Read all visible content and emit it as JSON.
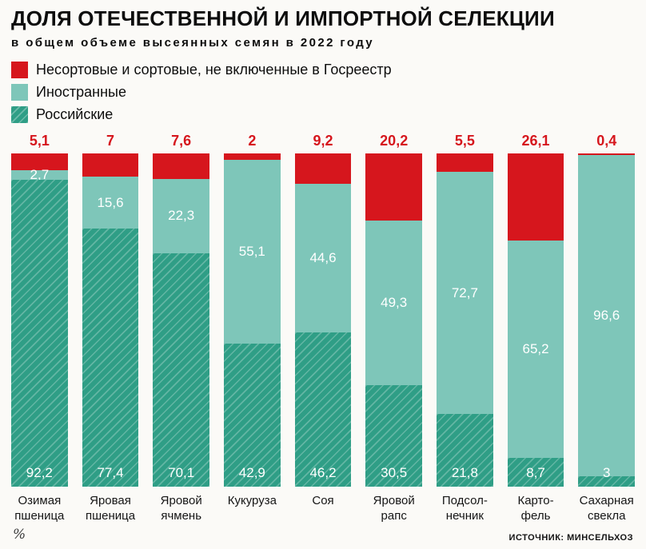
{
  "title": "ДОЛЯ ОТЕЧЕСТВЕННОЙ И ИМПОРТНОЙ СЕЛЕКЦИИ",
  "subtitle": "в общем объеме высеянных семян в 2022 году",
  "colors": {
    "unsorted": "#d6161d",
    "foreign": "#7ec6b9",
    "russian": "#2f9e86",
    "background": "#fbfaf7"
  },
  "legend": [
    {
      "key": "unsorted",
      "label": "Несортовые и сортовые, не включенные в Госреестр"
    },
    {
      "key": "foreign",
      "label": "Иностранные"
    },
    {
      "key": "russian",
      "label": "Российские"
    }
  ],
  "chart_data": {
    "type": "bar",
    "stacked": true,
    "unit": "%",
    "ylim": [
      0,
      100
    ],
    "legend_position": "top-left",
    "grid": false,
    "categories": [
      "Озимая пшеница",
      "Яровая пшеница",
      "Яровой ячмень",
      "Кукуруза",
      "Соя",
      "Яровой рапс",
      "Подсолнечник",
      "Картофель",
      "Сахарная свекла"
    ],
    "category_labels": [
      [
        "Озимая",
        "пшеница"
      ],
      [
        "Яровая",
        "пшеница"
      ],
      [
        "Яровой",
        "ячмень"
      ],
      [
        "Кукуруза"
      ],
      [
        "Соя"
      ],
      [
        "Яровой",
        "рапс"
      ],
      [
        "Подсол-",
        "нечник"
      ],
      [
        "Карто-",
        "фель"
      ],
      [
        "Сахарная",
        "свекла"
      ]
    ],
    "series": [
      {
        "key": "russian",
        "name": "Российские",
        "values": [
          92.2,
          77.4,
          70.1,
          42.9,
          46.2,
          30.5,
          21.8,
          8.7,
          3
        ]
      },
      {
        "key": "foreign",
        "name": "Иностранные",
        "values": [
          2.7,
          15.6,
          22.3,
          55.1,
          44.6,
          49.3,
          72.7,
          65.2,
          96.6
        ]
      },
      {
        "key": "unsorted",
        "name": "Несортовые и сортовые, не включенные в Госреестр",
        "values": [
          5.1,
          7,
          7.6,
          2,
          9.2,
          20.2,
          5.5,
          26.1,
          0.4
        ]
      }
    ],
    "value_labels": {
      "unsorted": [
        "5,1",
        "7",
        "7,6",
        "2",
        "9,2",
        "20,2",
        "5,5",
        "26,1",
        "0,4"
      ],
      "foreign": [
        "2,7",
        "15,6",
        "22,3",
        "55,1",
        "44,6",
        "49,3",
        "72,7",
        "65,2",
        "96,6"
      ],
      "russian": [
        "92,2",
        "77,4",
        "70,1",
        "42,9",
        "46,2",
        "30,5",
        "21,8",
        "8,7",
        "3"
      ]
    }
  },
  "footer": {
    "unit_label": "%",
    "source": "ИСТОЧНИК: МИНСЕЛЬХОЗ"
  }
}
